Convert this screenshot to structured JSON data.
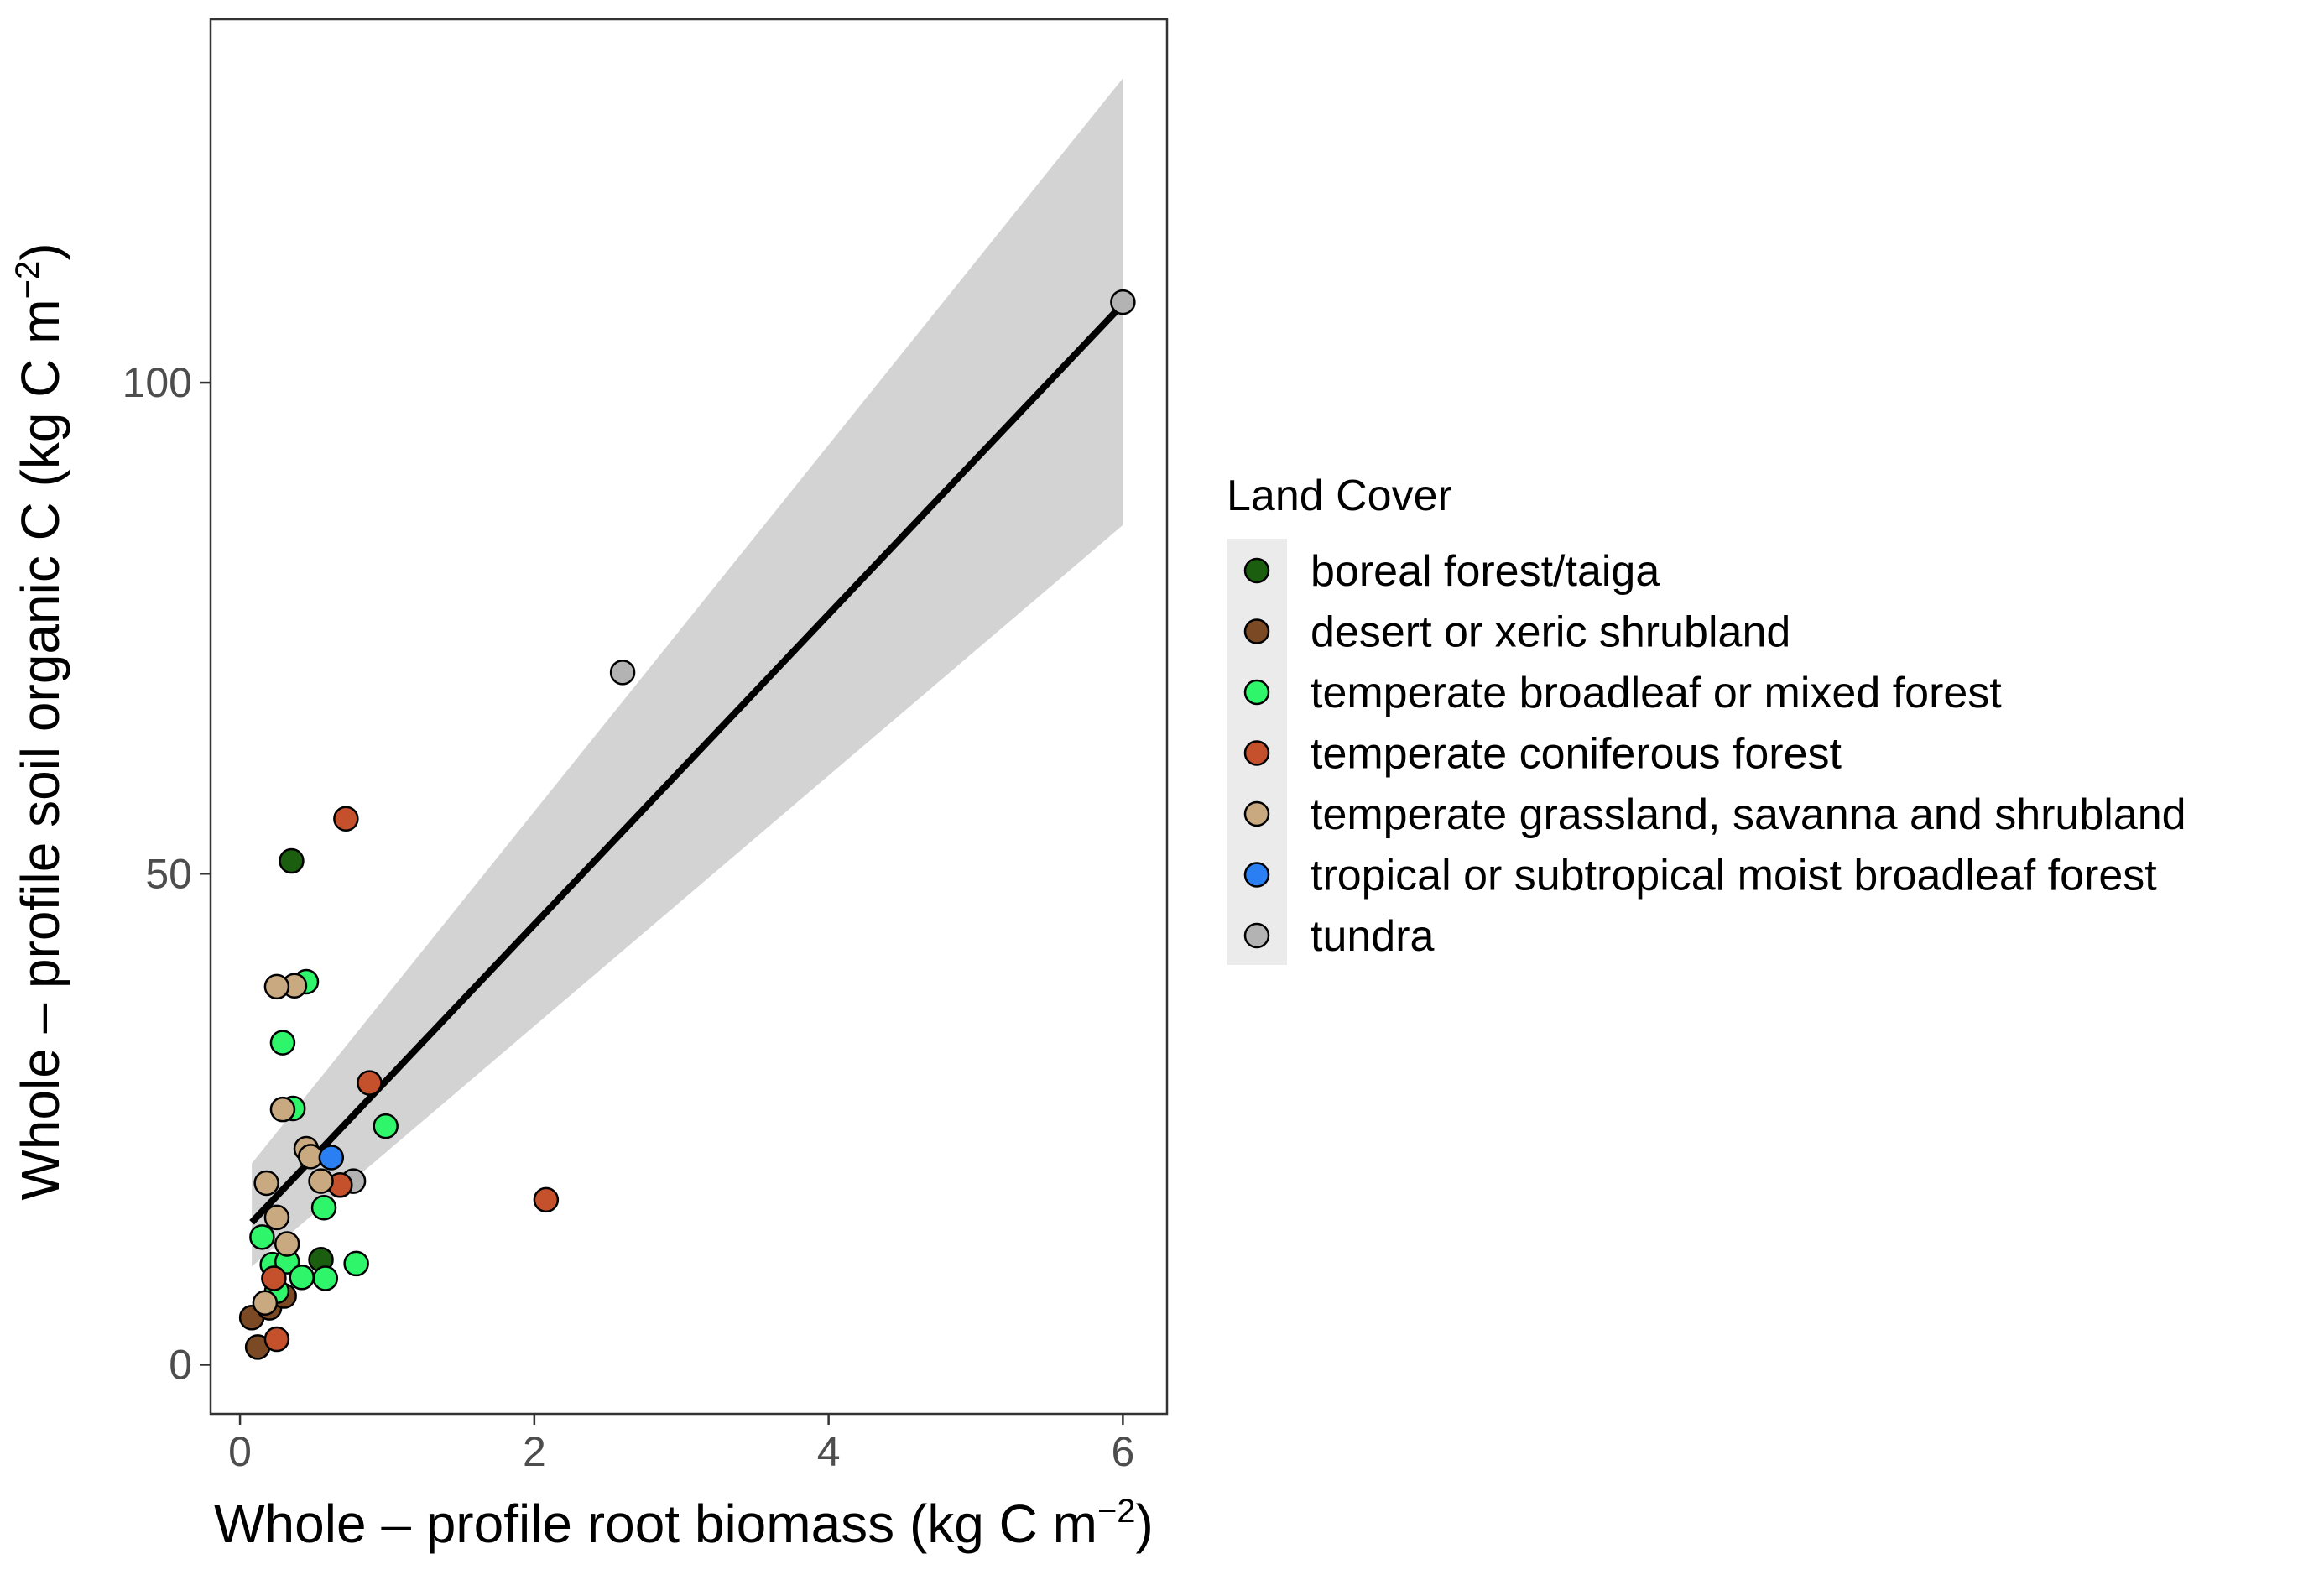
{
  "chart_data": {
    "type": "scatter",
    "xlabel": {
      "main": "Whole – profile root biomass (kg C m",
      "sup": "−2",
      "close": ")"
    },
    "ylabel": {
      "main": "Whole – profile soil organic C (kg C m",
      "sup": "−2",
      "close": ")"
    },
    "xlim": [
      -0.2,
      6.3
    ],
    "ylim": [
      -5,
      137
    ],
    "xticks": [
      0,
      2,
      4,
      6
    ],
    "yticks": [
      0,
      50,
      100
    ],
    "xtick_labels": [
      "0",
      "2",
      "4",
      "6"
    ],
    "ytick_labels": [
      "0",
      "50",
      "100"
    ],
    "grid": false,
    "legend": {
      "title": "Land Cover",
      "position": "right",
      "entries": [
        {
          "label": "boreal forest/taiga",
          "color": "#1b5e0f"
        },
        {
          "label": "desert or xeric shrubland",
          "color": "#7b4a24"
        },
        {
          "label": "temperate broadleaf or mixed forest",
          "color": "#2ef56a"
        },
        {
          "label": "temperate coniferous forest",
          "color": "#c4502c"
        },
        {
          "label": "temperate grassland, savanna and shrubland",
          "color": "#c9aa80"
        },
        {
          "label": "tropical or subtropical moist broadleaf forest",
          "color": "#2a7ff2"
        },
        {
          "label": "tundra",
          "color": "#b3b3b3"
        }
      ]
    },
    "fit": {
      "x": [
        0.08,
        6.0
      ],
      "y": [
        14.5,
        108
      ],
      "ci_lower": [
        10,
        85.5
      ],
      "ci_upper": [
        20.5,
        131
      ],
      "line_color": "#000000",
      "band_color": "#d3d3d3"
    },
    "points": [
      {
        "x": 6.0,
        "y": 108.2,
        "group": 6
      },
      {
        "x": 2.6,
        "y": 70.5,
        "group": 6
      },
      {
        "x": 0.77,
        "y": 18.7,
        "group": 6
      },
      {
        "x": 0.35,
        "y": 51.3,
        "group": 0
      },
      {
        "x": 0.55,
        "y": 10.7,
        "group": 0
      },
      {
        "x": 0.08,
        "y": 4.8,
        "group": 1
      },
      {
        "x": 0.12,
        "y": 1.8,
        "group": 1
      },
      {
        "x": 0.2,
        "y": 5.8,
        "group": 1
      },
      {
        "x": 0.3,
        "y": 7.0,
        "group": 1
      },
      {
        "x": 0.45,
        "y": 39.0,
        "group": 2
      },
      {
        "x": 0.29,
        "y": 32.8,
        "group": 2
      },
      {
        "x": 0.36,
        "y": 26.1,
        "group": 2
      },
      {
        "x": 0.99,
        "y": 24.3,
        "group": 2
      },
      {
        "x": 0.57,
        "y": 16.0,
        "group": 2
      },
      {
        "x": 0.15,
        "y": 13.0,
        "group": 2
      },
      {
        "x": 0.22,
        "y": 10.2,
        "group": 2
      },
      {
        "x": 0.32,
        "y": 10.5,
        "group": 2
      },
      {
        "x": 0.42,
        "y": 8.9,
        "group": 2
      },
      {
        "x": 0.58,
        "y": 8.8,
        "group": 2
      },
      {
        "x": 0.79,
        "y": 10.3,
        "group": 2
      },
      {
        "x": 0.25,
        "y": 7.5,
        "group": 2
      },
      {
        "x": 0.72,
        "y": 55.6,
        "group": 3
      },
      {
        "x": 0.88,
        "y": 28.7,
        "group": 3
      },
      {
        "x": 2.08,
        "y": 16.8,
        "group": 3
      },
      {
        "x": 0.68,
        "y": 18.3,
        "group": 3
      },
      {
        "x": 0.23,
        "y": 8.8,
        "group": 3
      },
      {
        "x": 0.25,
        "y": 2.6,
        "group": 3
      },
      {
        "x": 0.37,
        "y": 38.6,
        "group": 4
      },
      {
        "x": 0.25,
        "y": 38.5,
        "group": 4
      },
      {
        "x": 0.29,
        "y": 26.0,
        "group": 4
      },
      {
        "x": 0.45,
        "y": 22.0,
        "group": 4
      },
      {
        "x": 0.48,
        "y": 21.2,
        "group": 4
      },
      {
        "x": 0.18,
        "y": 18.5,
        "group": 4
      },
      {
        "x": 0.55,
        "y": 18.7,
        "group": 4
      },
      {
        "x": 0.25,
        "y": 15.0,
        "group": 4
      },
      {
        "x": 0.32,
        "y": 12.3,
        "group": 4
      },
      {
        "x": 0.17,
        "y": 6.3,
        "group": 4
      },
      {
        "x": 0.62,
        "y": 21.1,
        "group": 5
      }
    ]
  }
}
